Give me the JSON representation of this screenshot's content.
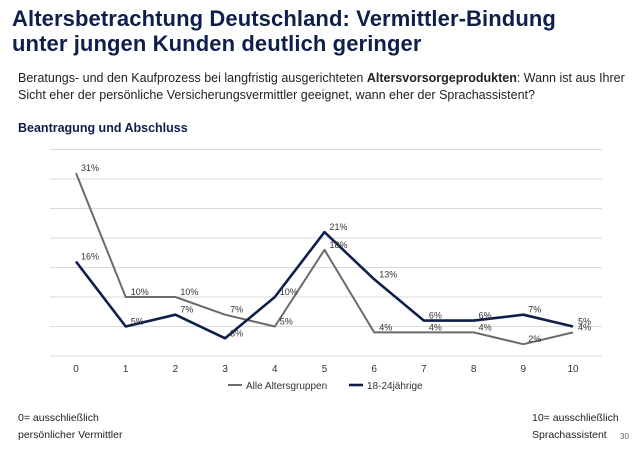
{
  "header": {
    "title_line1": "Altersbetrachtung Deutschland: Vermittler-Bindung",
    "title_line2": "unter jungen Kunden deutlich geringer",
    "subtitle_part1": "Beratungs- und den Kaufprozess bei langfristig ausgerichteten ",
    "subtitle_bold": "Altersvorsorgeprodukten",
    "subtitle_part2": ": Wann ist aus Ihrer Sicht eher der persönliche Versicherungsvermittler geeignet, wann eher der Sprachassistent?",
    "section_title": "Beantragung und Abschluss"
  },
  "footer": {
    "left_line1": "0= ausschließlich",
    "left_line2": "persönlicher Vermittler",
    "right_line1": "10= ausschließlich",
    "right_line2": "Sprachassistent",
    "page_number": "30"
  },
  "chart_data": {
    "type": "line",
    "categories": [
      "0",
      "1",
      "2",
      "3",
      "4",
      "5",
      "6",
      "7",
      "8",
      "9",
      "10"
    ],
    "ylim": [
      0,
      35
    ],
    "grid": true,
    "legend_position": "bottom",
    "series": [
      {
        "name": "Alle Altersgruppen",
        "color": "#6b6b6b",
        "values": [
          31,
          10,
          10,
          7,
          5,
          18,
          4,
          4,
          4,
          2,
          4
        ],
        "labels": [
          "31%",
          "10%",
          "10%",
          "7%",
          "5%",
          "18%",
          "4%",
          "4%",
          "4%",
          "2%",
          "4%"
        ]
      },
      {
        "name": "18-24jährige",
        "color": "#0f1f4b",
        "values": [
          16,
          5,
          7,
          3,
          10,
          21,
          13,
          6,
          6,
          7,
          5
        ],
        "labels": [
          "16%",
          "5%",
          "7%",
          "3%",
          "10%",
          "21%",
          "13%",
          "6%",
          "6%",
          "7%",
          "5%"
        ]
      }
    ]
  }
}
